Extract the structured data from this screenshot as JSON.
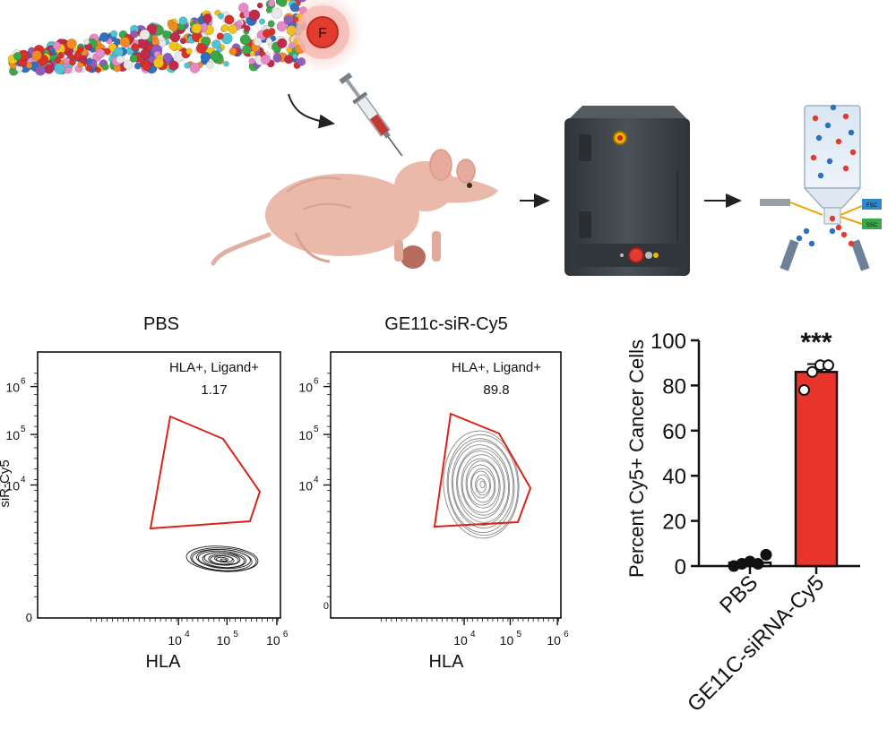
{
  "schematic": {
    "fluorophore_label": "F",
    "colors": {
      "fluor_glow": "#f3a29b",
      "fluor_core": "#e23b30",
      "mouse_skin": "#eab9a9",
      "tumor": "#b66b5f",
      "cytometer_body": "#3d4347",
      "accent_yellow": "#f0b400",
      "fsc_tag": "#2f86c9",
      "ssc_tag": "#3aa84a"
    },
    "detector_tags": {
      "fsc": "FSC",
      "ssc": "SSC"
    },
    "icons": [
      "molecule-icon",
      "syringe-icon",
      "mouse-icon",
      "flow-cytometer-icon",
      "flow-cell-icon"
    ]
  },
  "plots": {
    "left": {
      "title": "PBS",
      "gate_label": "HLA+, Ligand+",
      "gate_value": "1.17",
      "xlabel": "HLA",
      "ylabel": "siR-Cy5",
      "x_ticks": [
        "10",
        "10",
        "10"
      ],
      "x_tick_exps": [
        "4",
        "5",
        "6"
      ],
      "y_ticks": [
        "10",
        "10",
        "10"
      ],
      "y_tick_exps": [
        "6",
        "5",
        "4"
      ],
      "zero_label": "0"
    },
    "right": {
      "title": "GE11c-siR-Cy5",
      "gate_label": "HLA+, Ligand+",
      "gate_value": "89.8",
      "xlabel": "HLA",
      "x_ticks": [
        "10",
        "10",
        "10"
      ],
      "x_tick_exps": [
        "4",
        "5",
        "6"
      ],
      "y_ticks": [
        "10",
        "10",
        "10"
      ],
      "y_tick_exps": [
        "6",
        "5",
        "4"
      ],
      "zero_label": "0"
    }
  },
  "chart_data": [
    {
      "type": "scatter",
      "title": "PBS",
      "xlabel": "HLA",
      "ylabel": "siR-Cy5",
      "x_scale": "log",
      "y_scale": "log",
      "gate": {
        "name": "HLA+, Ligand+",
        "percent": 1.17
      }
    },
    {
      "type": "scatter",
      "title": "GE11c-siR-Cy5",
      "xlabel": "HLA",
      "x_scale": "log",
      "y_scale": "log",
      "gate": {
        "name": "HLA+, Ligand+",
        "percent": 89.8
      }
    },
    {
      "type": "bar",
      "categories": [
        "PBS",
        "GE11C-siRNA-Cy5"
      ],
      "values": [
        1.5,
        86
      ],
      "error": [
        1.2,
        3.5
      ],
      "points": [
        [
          0,
          1,
          2,
          1,
          5
        ],
        [
          78,
          86,
          89,
          89
        ]
      ],
      "ylabel": "Percent Cy5+ Cancer Cells",
      "ylim": [
        0,
        100
      ],
      "y_ticks": [
        "0",
        "20",
        "40",
        "60",
        "80",
        "100"
      ],
      "significance": "***",
      "colors": {
        "PBS": "#ffffff",
        "GE11C-siRNA-Cy5": "#e8352b"
      }
    }
  ]
}
